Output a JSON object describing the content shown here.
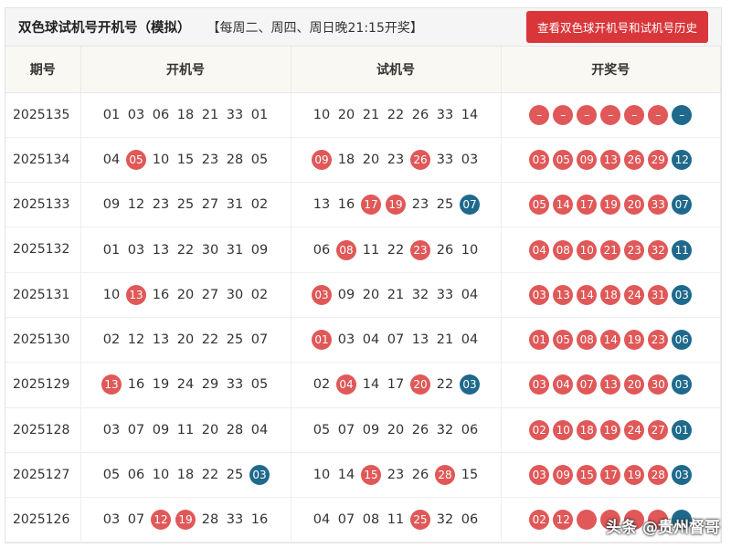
{
  "header": {
    "title": "双色球试机号开机号（模拟）",
    "note": "【每周二、周四、周日晚21:15开奖】",
    "history_button": "查看双色球开机号和试机号历史"
  },
  "columns": [
    "期号",
    "开机号",
    "试机号",
    "开奖号"
  ],
  "colors": {
    "red_ball": "#e05858",
    "blue_ball": "#1f6a8c",
    "button": "#d9363a"
  },
  "rows": [
    {
      "issue": "2025135",
      "open": [
        "01",
        "03",
        "06",
        "18",
        "21",
        "33",
        "01"
      ],
      "open_hl": [],
      "test": [
        "10",
        "20",
        "21",
        "22",
        "26",
        "33",
        "14"
      ],
      "test_hl": [],
      "prize": [
        "–",
        "–",
        "–",
        "–",
        "–",
        "–",
        "–"
      ]
    },
    {
      "issue": "2025134",
      "open": [
        "04",
        "05",
        "10",
        "15",
        "23",
        "28",
        "05"
      ],
      "open_hl": [
        {
          "i": 1,
          "c": "r"
        }
      ],
      "test": [
        "09",
        "18",
        "20",
        "23",
        "26",
        "33",
        "03"
      ],
      "test_hl": [
        {
          "i": 0,
          "c": "r"
        },
        {
          "i": 4,
          "c": "r"
        }
      ],
      "prize": [
        "03",
        "05",
        "09",
        "13",
        "26",
        "29",
        "12"
      ]
    },
    {
      "issue": "2025133",
      "open": [
        "09",
        "12",
        "23",
        "25",
        "27",
        "31",
        "02"
      ],
      "open_hl": [],
      "test": [
        "13",
        "16",
        "17",
        "19",
        "23",
        "25",
        "07"
      ],
      "test_hl": [
        {
          "i": 2,
          "c": "r"
        },
        {
          "i": 3,
          "c": "r"
        },
        {
          "i": 6,
          "c": "b"
        }
      ],
      "prize": [
        "05",
        "14",
        "17",
        "19",
        "20",
        "33",
        "07"
      ]
    },
    {
      "issue": "2025132",
      "open": [
        "01",
        "03",
        "13",
        "22",
        "30",
        "31",
        "09"
      ],
      "open_hl": [],
      "test": [
        "06",
        "08",
        "11",
        "22",
        "23",
        "26",
        "10"
      ],
      "test_hl": [
        {
          "i": 1,
          "c": "r"
        },
        {
          "i": 4,
          "c": "r"
        }
      ],
      "prize": [
        "04",
        "08",
        "10",
        "21",
        "23",
        "32",
        "11"
      ]
    },
    {
      "issue": "2025131",
      "open": [
        "10",
        "13",
        "16",
        "20",
        "27",
        "30",
        "02"
      ],
      "open_hl": [
        {
          "i": 1,
          "c": "r"
        }
      ],
      "test": [
        "03",
        "09",
        "20",
        "21",
        "32",
        "33",
        "04"
      ],
      "test_hl": [
        {
          "i": 0,
          "c": "r"
        }
      ],
      "prize": [
        "03",
        "13",
        "14",
        "18",
        "24",
        "31",
        "03"
      ]
    },
    {
      "issue": "2025130",
      "open": [
        "02",
        "12",
        "13",
        "20",
        "22",
        "25",
        "07"
      ],
      "open_hl": [],
      "test": [
        "01",
        "03",
        "04",
        "07",
        "13",
        "21",
        "04"
      ],
      "test_hl": [
        {
          "i": 0,
          "c": "r"
        }
      ],
      "prize": [
        "01",
        "05",
        "08",
        "14",
        "19",
        "23",
        "06"
      ]
    },
    {
      "issue": "2025129",
      "open": [
        "13",
        "16",
        "19",
        "24",
        "29",
        "33",
        "05"
      ],
      "open_hl": [
        {
          "i": 0,
          "c": "r"
        }
      ],
      "test": [
        "02",
        "04",
        "14",
        "17",
        "20",
        "22",
        "03"
      ],
      "test_hl": [
        {
          "i": 1,
          "c": "r"
        },
        {
          "i": 4,
          "c": "r"
        },
        {
          "i": 6,
          "c": "b"
        }
      ],
      "prize": [
        "03",
        "04",
        "07",
        "13",
        "20",
        "30",
        "03"
      ]
    },
    {
      "issue": "2025128",
      "open": [
        "03",
        "07",
        "09",
        "11",
        "20",
        "28",
        "04"
      ],
      "open_hl": [],
      "test": [
        "05",
        "07",
        "09",
        "20",
        "26",
        "32",
        "06"
      ],
      "test_hl": [],
      "prize": [
        "02",
        "10",
        "18",
        "19",
        "24",
        "27",
        "01"
      ]
    },
    {
      "issue": "2025127",
      "open": [
        "05",
        "06",
        "10",
        "18",
        "22",
        "25",
        "03"
      ],
      "open_hl": [
        {
          "i": 6,
          "c": "b"
        }
      ],
      "test": [
        "10",
        "14",
        "15",
        "23",
        "26",
        "28",
        "15"
      ],
      "test_hl": [
        {
          "i": 2,
          "c": "r"
        },
        {
          "i": 5,
          "c": "r"
        }
      ],
      "prize": [
        "03",
        "09",
        "15",
        "17",
        "19",
        "28",
        "03"
      ]
    },
    {
      "issue": "2025126",
      "open": [
        "03",
        "07",
        "12",
        "19",
        "28",
        "33",
        "16"
      ],
      "open_hl": [
        {
          "i": 2,
          "c": "r"
        },
        {
          "i": 3,
          "c": "r"
        }
      ],
      "test": [
        "04",
        "07",
        "08",
        "11",
        "25",
        "32",
        "06"
      ],
      "test_hl": [
        {
          "i": 4,
          "c": "r"
        }
      ],
      "prize": [
        "02",
        "12",
        "",
        "",
        "",
        "",
        ""
      ]
    }
  ],
  "watermark": "头条 @贵州督哥"
}
